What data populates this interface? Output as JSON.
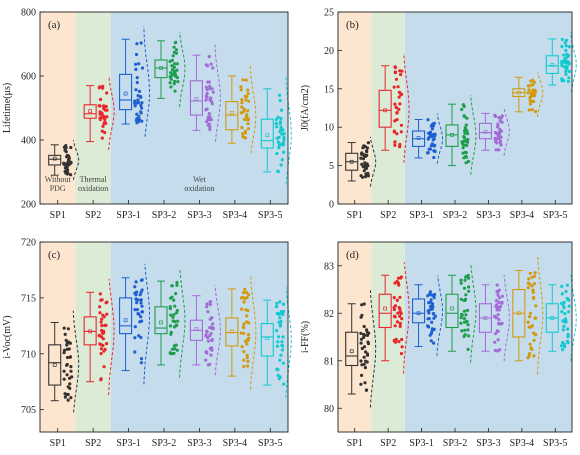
{
  "colors": {
    "bg_sp1": "#fde6cf",
    "bg_sp2": "#dcebd6",
    "bg_sp3": "#c5dcec",
    "series": [
      "#333333",
      "#e8262e",
      "#1f5fd1",
      "#1e9e4b",
      "#a36bd8",
      "#d49a0e",
      "#12c9cf"
    ]
  },
  "chart_data": [
    {
      "type": "box",
      "panel": "(a)",
      "ylabel": "Lifetime(μs)",
      "ylim": [
        200,
        800
      ],
      "yticks": [
        200,
        400,
        600,
        800
      ],
      "categories": [
        "SP1",
        "SP2",
        "SP3-1",
        "SP3-2",
        "SP3-3",
        "SP3-4",
        "SP3-5"
      ],
      "boxes": [
        {
          "min": 290,
          "q1": 322,
          "median": 340,
          "mean": 342,
          "q3": 352,
          "max": 385
        },
        {
          "min": 395,
          "q1": 468,
          "median": 482,
          "mean": 490,
          "q3": 510,
          "max": 570
        },
        {
          "min": 450,
          "q1": 495,
          "median": 525,
          "mean": 545,
          "q3": 605,
          "max": 715
        },
        {
          "min": 530,
          "q1": 595,
          "median": 625,
          "mean": 625,
          "q3": 650,
          "max": 710
        },
        {
          "min": 430,
          "q1": 478,
          "median": 522,
          "mean": 528,
          "q3": 585,
          "max": 665
        },
        {
          "min": 390,
          "q1": 432,
          "median": 478,
          "mean": 485,
          "q3": 520,
          "max": 600
        },
        {
          "min": 300,
          "q1": 375,
          "median": 398,
          "mean": 415,
          "q3": 465,
          "max": 560
        }
      ],
      "annotations": [
        "Without\nPDG",
        "Thermal\noxidation",
        "Wet\noxidation"
      ]
    },
    {
      "type": "box",
      "panel": "(b)",
      "ylabel": "J0(fA/cm2)",
      "ylim": [
        0,
        25
      ],
      "yticks": [
        0,
        5,
        10,
        15,
        20,
        25
      ],
      "categories": [
        "SP1",
        "SP2",
        "SP3-1",
        "SP3-2",
        "SP3-3",
        "SP3-4",
        "SP3-5"
      ],
      "boxes": [
        {
          "min": 3.0,
          "q1": 4.4,
          "median": 5.5,
          "mean": 5.5,
          "q3": 6.6,
          "max": 8.0
        },
        {
          "min": 7.0,
          "q1": 10.0,
          "median": 12.2,
          "mean": 12.2,
          "q3": 14.8,
          "max": 18.0
        },
        {
          "min": 6.0,
          "q1": 7.5,
          "median": 8.5,
          "mean": 8.6,
          "q3": 9.5,
          "max": 11.0
        },
        {
          "min": 5.0,
          "q1": 7.5,
          "median": 9.0,
          "mean": 9.0,
          "q3": 10.3,
          "max": 13.0
        },
        {
          "min": 7.0,
          "q1": 8.5,
          "median": 9.3,
          "mean": 9.4,
          "q3": 10.5,
          "max": 11.8
        },
        {
          "min": 12.0,
          "q1": 14.0,
          "median": 14.5,
          "mean": 14.5,
          "q3": 15.0,
          "max": 16.5
        },
        {
          "min": 15.5,
          "q1": 17.0,
          "median": 18.0,
          "mean": 18.1,
          "q3": 19.3,
          "max": 21.5
        }
      ]
    },
    {
      "type": "box",
      "panel": "(c)",
      "ylabel": "i-Voc(mV)",
      "ylim": [
        703,
        720
      ],
      "yticks": [
        705,
        710,
        715,
        720
      ],
      "categories": [
        "SP1",
        "SP2",
        "SP3-1",
        "SP3-2",
        "SP3-3",
        "SP3-4",
        "SP3-5"
      ],
      "boxes": [
        {
          "min": 705.8,
          "q1": 707.2,
          "median": 709.2,
          "mean": 709.0,
          "q3": 710.8,
          "max": 712.8
        },
        {
          "min": 707.5,
          "q1": 710.8,
          "median": 712.0,
          "mean": 712.0,
          "q3": 713.3,
          "max": 715.5
        },
        {
          "min": 708.5,
          "q1": 711.8,
          "median": 712.5,
          "mean": 713.0,
          "q3": 715.0,
          "max": 716.8
        },
        {
          "min": 709.0,
          "q1": 711.8,
          "median": 712.3,
          "mean": 712.8,
          "q3": 714.2,
          "max": 716.5
        },
        {
          "min": 709.0,
          "q1": 711.2,
          "median": 712.1,
          "mean": 712.2,
          "q3": 713.0,
          "max": 715.2
        },
        {
          "min": 708.0,
          "q1": 710.7,
          "median": 711.9,
          "mean": 712.0,
          "q3": 713.2,
          "max": 715.8
        },
        {
          "min": 707.2,
          "q1": 709.8,
          "median": 711.5,
          "mean": 711.4,
          "q3": 712.7,
          "max": 714.8
        }
      ]
    },
    {
      "type": "box",
      "panel": "(d)",
      "ylabel": "i-FF(%)",
      "ylim": [
        79.5,
        83.5
      ],
      "yticks": [
        80,
        81,
        82,
        83
      ],
      "categories": [
        "SP1",
        "SP2",
        "SP3-1",
        "SP3-2",
        "SP3-3",
        "SP3-4",
        "SP3-5"
      ],
      "boxes": [
        {
          "min": 80.3,
          "q1": 80.9,
          "median": 81.1,
          "mean": 81.2,
          "q3": 81.6,
          "max": 82.2
        },
        {
          "min": 81.0,
          "q1": 81.7,
          "median": 82.0,
          "mean": 82.1,
          "q3": 82.4,
          "max": 82.8
        },
        {
          "min": 81.3,
          "q1": 81.8,
          "median": 82.0,
          "mean": 82.0,
          "q3": 82.3,
          "max": 82.6
        },
        {
          "min": 81.2,
          "q1": 81.7,
          "median": 82.0,
          "mean": 82.1,
          "q3": 82.4,
          "max": 82.8
        },
        {
          "min": 81.2,
          "q1": 81.6,
          "median": 81.9,
          "mean": 81.9,
          "q3": 82.2,
          "max": 82.6
        },
        {
          "min": 81.0,
          "q1": 81.5,
          "median": 82.0,
          "mean": 82.0,
          "q3": 82.5,
          "max": 82.9
        },
        {
          "min": 81.2,
          "q1": 81.6,
          "median": 81.9,
          "mean": 81.9,
          "q3": 82.2,
          "max": 82.6
        }
      ]
    }
  ]
}
